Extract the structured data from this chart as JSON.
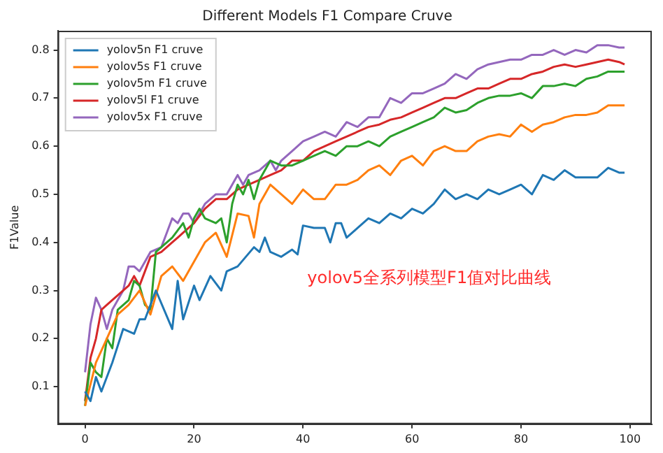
{
  "chart_data": {
    "type": "line",
    "title": "Different Models F1 Compare Cruve",
    "ylabel": "F1Value",
    "annotations": [
      "yolov5全系列模型F1值对比曲线"
    ],
    "xlim": [
      -5,
      104
    ],
    "xticks": [
      0,
      20,
      40,
      60,
      80,
      100
    ],
    "ylim": [
      0.022,
      0.84
    ],
    "yticks": [
      0.1,
      0.2,
      0.3,
      0.4,
      0.5,
      0.6,
      0.7,
      0.8
    ],
    "grid": false,
    "legend": "top left",
    "marker": "none",
    "line_style": "solid",
    "series": [
      {
        "name": "yolov5n F1 cruve",
        "color": "#1f77b4",
        "x": [
          0,
          1,
          2,
          3,
          5,
          7,
          9,
          10,
          11,
          13,
          16,
          17,
          18,
          20,
          21,
          23,
          25,
          26,
          28,
          31,
          32,
          33,
          34,
          36,
          38,
          39,
          40,
          42,
          44,
          45,
          46,
          47,
          48,
          50,
          52,
          54,
          56,
          58,
          60,
          62,
          64,
          66,
          68,
          70,
          72,
          74,
          76,
          78,
          80,
          82,
          84,
          86,
          88,
          90,
          92,
          94,
          96,
          98,
          99
        ],
        "values": [
          0.09,
          0.07,
          0.12,
          0.09,
          0.15,
          0.22,
          0.21,
          0.24,
          0.24,
          0.3,
          0.22,
          0.32,
          0.24,
          0.31,
          0.28,
          0.33,
          0.3,
          0.34,
          0.35,
          0.39,
          0.38,
          0.41,
          0.38,
          0.37,
          0.385,
          0.375,
          0.435,
          0.43,
          0.43,
          0.4,
          0.44,
          0.44,
          0.41,
          0.43,
          0.45,
          0.44,
          0.46,
          0.45,
          0.47,
          0.46,
          0.48,
          0.51,
          0.49,
          0.5,
          0.49,
          0.51,
          0.5,
          0.51,
          0.52,
          0.5,
          0.54,
          0.53,
          0.55,
          0.535,
          0.535,
          0.535,
          0.555,
          0.545,
          0.545
        ]
      },
      {
        "name": "yolov5s F1 cruve",
        "color": "#ff7f0e",
        "x": [
          0,
          2,
          4,
          6,
          8,
          10,
          12,
          14,
          16,
          18,
          20,
          22,
          24,
          26,
          28,
          30,
          31,
          32,
          34,
          36,
          38,
          40,
          42,
          44,
          46,
          48,
          50,
          52,
          54,
          56,
          58,
          60,
          62,
          64,
          66,
          68,
          70,
          72,
          74,
          76,
          78,
          80,
          82,
          84,
          86,
          88,
          90,
          92,
          94,
          96,
          98,
          99
        ],
        "values": [
          0.06,
          0.15,
          0.2,
          0.25,
          0.27,
          0.3,
          0.25,
          0.33,
          0.35,
          0.32,
          0.36,
          0.4,
          0.42,
          0.37,
          0.46,
          0.455,
          0.41,
          0.48,
          0.52,
          0.5,
          0.48,
          0.51,
          0.49,
          0.49,
          0.52,
          0.52,
          0.53,
          0.55,
          0.56,
          0.54,
          0.57,
          0.58,
          0.56,
          0.59,
          0.6,
          0.59,
          0.59,
          0.61,
          0.62,
          0.625,
          0.62,
          0.645,
          0.63,
          0.645,
          0.65,
          0.66,
          0.665,
          0.665,
          0.67,
          0.685,
          0.685,
          0.685
        ]
      },
      {
        "name": "yolov5m F1 cruve",
        "color": "#2ca02c",
        "x": [
          0,
          1,
          2,
          3,
          4,
          5,
          6,
          8,
          9,
          10,
          11,
          12,
          13,
          14,
          16,
          18,
          19,
          20,
          21,
          22,
          24,
          25,
          26,
          27,
          28,
          29,
          30,
          31,
          32,
          34,
          36,
          38,
          40,
          42,
          44,
          46,
          48,
          50,
          52,
          54,
          56,
          58,
          60,
          62,
          64,
          66,
          68,
          70,
          72,
          74,
          76,
          78,
          80,
          82,
          84,
          86,
          88,
          90,
          92,
          94,
          96,
          98,
          99
        ],
        "values": [
          0.06,
          0.15,
          0.13,
          0.12,
          0.2,
          0.18,
          0.26,
          0.28,
          0.32,
          0.31,
          0.27,
          0.26,
          0.38,
          0.39,
          0.41,
          0.44,
          0.41,
          0.45,
          0.47,
          0.45,
          0.44,
          0.45,
          0.4,
          0.48,
          0.52,
          0.5,
          0.53,
          0.49,
          0.53,
          0.57,
          0.56,
          0.56,
          0.57,
          0.58,
          0.59,
          0.58,
          0.6,
          0.6,
          0.61,
          0.6,
          0.62,
          0.63,
          0.64,
          0.65,
          0.66,
          0.68,
          0.67,
          0.675,
          0.69,
          0.7,
          0.705,
          0.705,
          0.71,
          0.7,
          0.725,
          0.725,
          0.73,
          0.725,
          0.74,
          0.745,
          0.755,
          0.755,
          0.755
        ]
      },
      {
        "name": "yolov5l F1 cruve",
        "color": "#d62728",
        "x": [
          0,
          1,
          2,
          3,
          4,
          6,
          8,
          9,
          10,
          12,
          14,
          16,
          18,
          20,
          22,
          24,
          26,
          28,
          30,
          32,
          34,
          36,
          38,
          40,
          42,
          44,
          46,
          48,
          50,
          52,
          54,
          56,
          58,
          60,
          62,
          64,
          66,
          68,
          70,
          72,
          74,
          76,
          78,
          80,
          82,
          84,
          86,
          88,
          90,
          92,
          94,
          96,
          98,
          99
        ],
        "values": [
          0.07,
          0.16,
          0.2,
          0.26,
          0.27,
          0.29,
          0.31,
          0.33,
          0.31,
          0.37,
          0.38,
          0.4,
          0.42,
          0.44,
          0.47,
          0.49,
          0.49,
          0.51,
          0.52,
          0.53,
          0.54,
          0.55,
          0.57,
          0.57,
          0.59,
          0.6,
          0.61,
          0.62,
          0.63,
          0.64,
          0.645,
          0.655,
          0.66,
          0.67,
          0.68,
          0.69,
          0.7,
          0.7,
          0.71,
          0.72,
          0.72,
          0.73,
          0.74,
          0.74,
          0.75,
          0.755,
          0.765,
          0.77,
          0.765,
          0.77,
          0.775,
          0.78,
          0.775,
          0.77
        ]
      },
      {
        "name": "yolov5x F1 cruve",
        "color": "#9467bd",
        "x": [
          0,
          1,
          2,
          3,
          4,
          5,
          6,
          7,
          8,
          9,
          10,
          12,
          14,
          15,
          16,
          17,
          18,
          19,
          20,
          22,
          24,
          26,
          28,
          29,
          30,
          32,
          34,
          35,
          36,
          38,
          40,
          42,
          44,
          46,
          48,
          50,
          52,
          54,
          56,
          58,
          60,
          62,
          64,
          66,
          68,
          70,
          72,
          74,
          76,
          78,
          80,
          82,
          84,
          86,
          88,
          90,
          92,
          94,
          96,
          98,
          99
        ],
        "values": [
          0.13,
          0.23,
          0.285,
          0.26,
          0.22,
          0.26,
          0.28,
          0.3,
          0.35,
          0.35,
          0.34,
          0.38,
          0.39,
          0.42,
          0.45,
          0.44,
          0.46,
          0.46,
          0.44,
          0.48,
          0.5,
          0.5,
          0.54,
          0.52,
          0.54,
          0.55,
          0.57,
          0.55,
          0.57,
          0.59,
          0.61,
          0.62,
          0.63,
          0.62,
          0.65,
          0.64,
          0.66,
          0.66,
          0.7,
          0.69,
          0.71,
          0.71,
          0.72,
          0.73,
          0.75,
          0.74,
          0.76,
          0.77,
          0.775,
          0.78,
          0.78,
          0.79,
          0.79,
          0.8,
          0.79,
          0.8,
          0.795,
          0.81,
          0.81,
          0.805,
          0.805
        ]
      }
    ]
  }
}
